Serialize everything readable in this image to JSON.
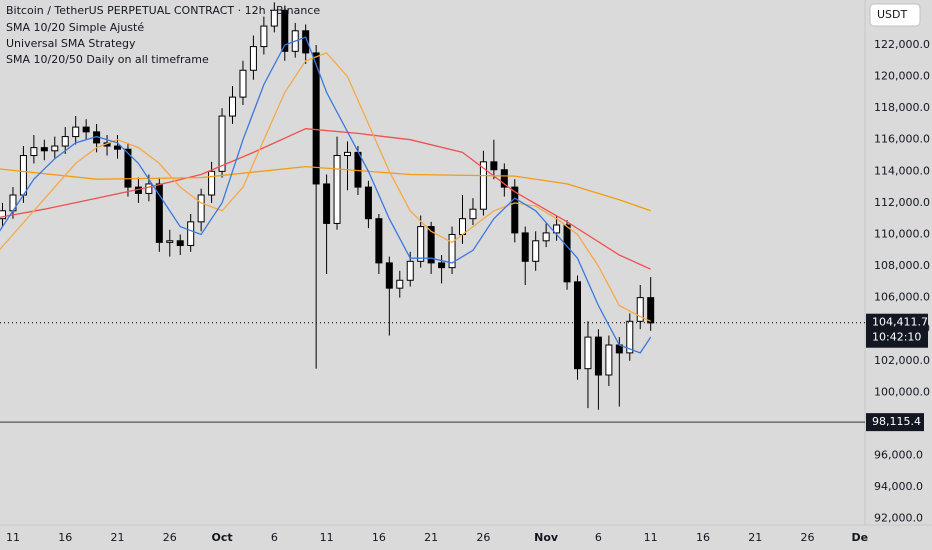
{
  "header": {
    "title": "Bitcoin / TetherUS PERPETUAL CONTRACT · 12h · Binance",
    "indicators": [
      "SMA 10/20 Simple Ajusté",
      "Universal SMA Strategy",
      "SMA 10/20/50 Daily on all timeframe"
    ],
    "currency_button": "USDT"
  },
  "chart_data": {
    "type": "candlestick",
    "x": [
      0,
      1,
      2,
      3,
      4,
      5,
      6,
      7,
      8,
      9,
      10,
      11,
      12,
      13,
      14,
      15,
      16,
      17,
      18,
      19,
      20,
      21,
      22,
      23,
      24,
      25,
      26,
      27,
      28,
      29,
      30,
      31,
      32,
      33,
      34,
      35,
      36,
      37,
      38,
      39,
      40,
      41,
      42,
      43,
      44,
      45,
      46,
      47,
      48,
      49,
      50,
      51,
      52,
      53,
      54,
      55,
      56,
      57,
      58,
      59,
      60,
      61,
      62,
      63
    ],
    "open": [
      110500,
      111000,
      111500,
      112500,
      115000,
      115500,
      115300,
      115600,
      116200,
      116800,
      116500,
      115800,
      115600,
      115400,
      113000,
      112600,
      113200,
      109500,
      109600,
      109300,
      110800,
      112500,
      114000,
      117500,
      118700,
      120400,
      121900,
      123200,
      124200,
      121600,
      122900,
      121500,
      113200,
      110700,
      115000,
      115200,
      113000,
      111000,
      108200,
      106600,
      107100,
      108300,
      110500,
      108200,
      107900,
      110000,
      111000,
      111600,
      114600,
      114100,
      113000,
      110100,
      108300,
      109600,
      110100,
      110600,
      107000,
      101500,
      103500,
      101100,
      103000,
      102500,
      104500,
      106000
    ],
    "high": [
      111600,
      112000,
      113000,
      115600,
      116300,
      116000,
      116200,
      116800,
      117500,
      117300,
      117000,
      116300,
      116300,
      115800,
      113600,
      113800,
      113600,
      110300,
      110000,
      111300,
      112900,
      114600,
      118000,
      119400,
      121000,
      122600,
      123800,
      124700,
      124500,
      123400,
      123300,
      122000,
      113800,
      116200,
      115900,
      115600,
      113400,
      111300,
      108600,
      107700,
      108900,
      111200,
      110800,
      108700,
      110500,
      112500,
      112300,
      115300,
      116000,
      114500,
      113500,
      110500,
      110200,
      110700,
      111200,
      110900,
      107400,
      104500,
      104000,
      103600,
      103500,
      105000,
      106800,
      107300
    ],
    "low": [
      109800,
      110500,
      111000,
      112000,
      114500,
      114700,
      114800,
      115100,
      115700,
      116000,
      115200,
      115000,
      114800,
      112400,
      112000,
      112100,
      108900,
      108600,
      108700,
      108900,
      110200,
      112000,
      113600,
      117000,
      118200,
      119800,
      121400,
      122800,
      121000,
      121200,
      120800,
      101500,
      107500,
      110300,
      112800,
      112500,
      110400,
      107500,
      103600,
      106000,
      106700,
      107900,
      107500,
      106900,
      107500,
      109400,
      110600,
      111200,
      113500,
      112400,
      109500,
      106800,
      107700,
      109200,
      109600,
      106500,
      100800,
      99000,
      98900,
      100400,
      99100,
      102000,
      104000,
      103900
    ],
    "close": [
      111000,
      111500,
      112500,
      115000,
      115500,
      115300,
      115600,
      116200,
      116800,
      116500,
      115800,
      115600,
      115400,
      113000,
      112600,
      113200,
      109500,
      109600,
      109300,
      110800,
      112500,
      114000,
      117500,
      118700,
      120400,
      121900,
      123200,
      124200,
      121600,
      122900,
      121500,
      113200,
      110700,
      115000,
      115200,
      113000,
      111000,
      108200,
      106600,
      107100,
      108300,
      110500,
      108200,
      107900,
      110000,
      111000,
      111600,
      114600,
      114100,
      113000,
      110100,
      108300,
      109600,
      110100,
      110600,
      107000,
      101500,
      103500,
      101100,
      103000,
      102500,
      104500,
      106000,
      104400
    ],
    "series": [
      {
        "color": "#f0504f",
        "x": [
          0,
          5,
          10,
          15,
          20,
          25,
          30,
          35,
          40,
          45,
          50,
          55,
          60,
          63
        ],
        "values": [
          111000,
          111600,
          112300,
          113000,
          113800,
          115200,
          116700,
          116400,
          116000,
          115200,
          112700,
          110800,
          108700,
          107800
        ]
      },
      {
        "color": "#f39c12",
        "x": [
          0,
          10,
          20,
          30,
          40,
          50,
          55,
          60,
          63
        ],
        "values": [
          114200,
          113500,
          113600,
          114300,
          113800,
          113700,
          113200,
          112200,
          111500
        ]
      },
      {
        "color": "#f5a94a",
        "x": [
          0,
          2,
          4,
          6,
          8,
          10,
          12,
          14,
          16,
          18,
          20,
          22,
          24,
          26,
          28,
          30,
          32,
          34,
          36,
          38,
          40,
          42,
          44,
          46,
          48,
          50,
          52,
          54,
          56,
          58,
          60,
          62,
          63
        ],
        "values": [
          108500,
          110000,
          111500,
          113000,
          114500,
          115500,
          116000,
          115500,
          114500,
          113000,
          112000,
          111500,
          113000,
          116000,
          119000,
          121000,
          121500,
          120000,
          117000,
          114000,
          111500,
          110200,
          109500,
          110500,
          111500,
          112000,
          111800,
          111000,
          110000,
          108000,
          105500,
          104800,
          104500
        ]
      },
      {
        "color": "#3a78e0",
        "x": [
          0,
          2,
          4,
          6,
          8,
          10,
          12,
          14,
          16,
          18,
          20,
          22,
          24,
          26,
          28,
          30,
          32,
          34,
          36,
          38,
          40,
          42,
          44,
          46,
          48,
          50,
          52,
          54,
          56,
          58,
          60,
          62,
          63
        ],
        "values": [
          109500,
          111500,
          113500,
          114800,
          115800,
          116200,
          115800,
          114500,
          112500,
          110500,
          110000,
          112000,
          116000,
          119500,
          122000,
          122500,
          119000,
          116500,
          114000,
          111000,
          108500,
          108500,
          108200,
          109000,
          111000,
          112300,
          111500,
          110000,
          108500,
          105500,
          103000,
          102500,
          103500
        ]
      }
    ],
    "xlim": [
      0.76,
      83.5
    ],
    "xticks": [
      {
        "value": 2,
        "label": "11"
      },
      {
        "value": 7,
        "label": "16"
      },
      {
        "value": 12,
        "label": "21"
      },
      {
        "value": 17,
        "label": "26"
      },
      {
        "value": 22,
        "label": "Oct"
      },
      {
        "value": 27,
        "label": "6"
      },
      {
        "value": 32,
        "label": "11"
      },
      {
        "value": 37,
        "label": "16"
      },
      {
        "value": 42,
        "label": "21"
      },
      {
        "value": 47,
        "label": "26"
      },
      {
        "value": 53,
        "label": "Nov"
      },
      {
        "value": 58,
        "label": "6"
      },
      {
        "value": 63,
        "label": "11"
      },
      {
        "value": 68,
        "label": "16"
      },
      {
        "value": 73,
        "label": "21"
      },
      {
        "value": 78,
        "label": "26"
      },
      {
        "value": 83,
        "label": "De"
      }
    ],
    "ylim": [
      91600,
      124850
    ],
    "yticks": [
      {
        "value": 92000,
        "label": "92,000.0"
      },
      {
        "value": 94000,
        "label": "94,000.0"
      },
      {
        "value": 96000,
        "label": "96,000.0"
      },
      {
        "value": 100000,
        "label": "100,000.0"
      },
      {
        "value": 102000,
        "label": "102,000.0"
      },
      {
        "value": 104000,
        "label": "104,000.0"
      },
      {
        "value": 106000,
        "label": "106,000.0"
      },
      {
        "value": 108000,
        "label": "108,000.0"
      },
      {
        "value": 110000,
        "label": "110,000.0"
      },
      {
        "value": 112000,
        "label": "112,000.0"
      },
      {
        "value": 114000,
        "label": "114,000.0"
      },
      {
        "value": 116000,
        "label": "116,000.0"
      },
      {
        "value": 118000,
        "label": "118,000.0"
      },
      {
        "value": 120000,
        "label": "120,000.0"
      },
      {
        "value": 122000,
        "label": "122,000.0"
      }
    ],
    "last_price": {
      "value": 104411.7,
      "label": "104,411.7"
    },
    "countdown": "10:42:10",
    "crosshair_price": {
      "value": 98115.4,
      "label": "98,115.4"
    },
    "grid": false
  }
}
